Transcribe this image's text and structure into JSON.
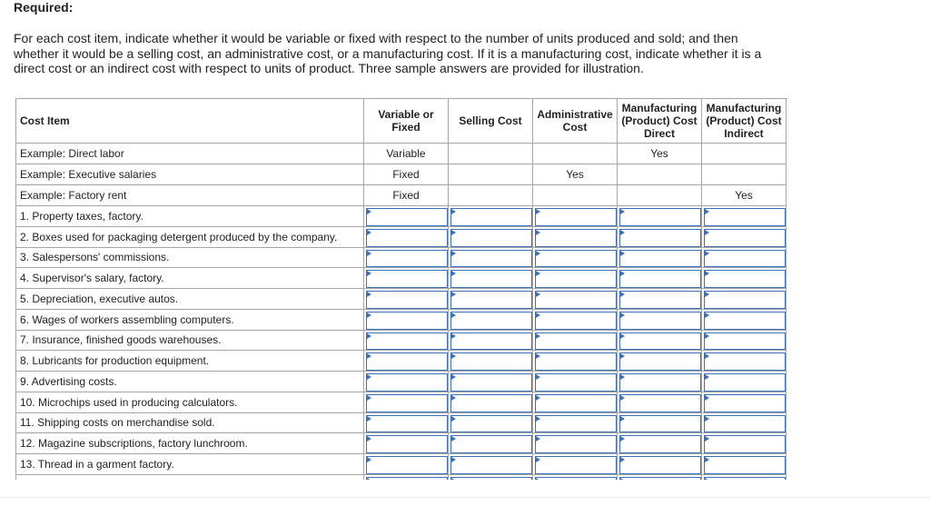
{
  "header": {
    "title": "Required:"
  },
  "instructions": {
    "lines": [
      "For each cost item, indicate whether it would be variable or fixed with respect to the number of units produced and sold; and then",
      "whether it would be a selling cost, an administrative cost, or a manufacturing cost. If it is a manufacturing cost, indicate whether it is a",
      "direct cost or an indirect cost with respect to units of product. Three sample answers are provided for illustration."
    ]
  },
  "table": {
    "columns": [
      "Cost Item",
      "Variable or Fixed",
      "Selling Cost",
      "Administrative Cost",
      "Manufacturing (Product) Cost Direct",
      "Manufacturing (Product) Cost Indirect"
    ],
    "rows": [
      {
        "item": "Example: Direct labor",
        "answers": [
          "Variable",
          null,
          null,
          "Yes",
          null
        ]
      },
      {
        "item": "Example: Executive salaries",
        "answers": [
          "Fixed",
          null,
          "Yes",
          null,
          null
        ]
      },
      {
        "item": "Example: Factory rent",
        "answers": [
          "Fixed",
          null,
          null,
          null,
          "Yes"
        ]
      },
      {
        "item": "1. Property taxes, factory."
      },
      {
        "item": "2. Boxes used for packaging detergent produced by the company."
      },
      {
        "item": "3. Salespersons' commissions."
      },
      {
        "item": "4. Supervisor's salary, factory."
      },
      {
        "item": "5. Depreciation, executive autos."
      },
      {
        "item": "6. Wages of workers assembling computers."
      },
      {
        "item": "7. Insurance, finished goods warehouses."
      },
      {
        "item": "8. Lubricants for production equipment."
      },
      {
        "item": "9. Advertising costs."
      },
      {
        "item": "10. Microchips used in producing calculators."
      },
      {
        "item": "11. Shipping costs on merchandise sold."
      },
      {
        "item": "12. Magazine subscriptions, factory lunchroom."
      },
      {
        "item": "13. Thread in a garment factory."
      }
    ]
  }
}
